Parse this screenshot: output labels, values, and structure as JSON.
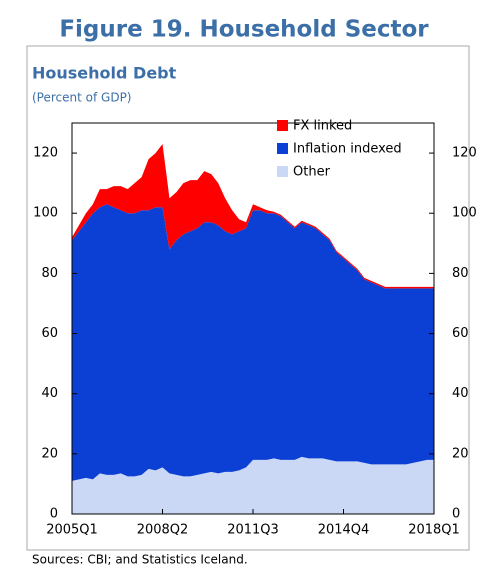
{
  "chart_data": {
    "type": "stacked_area",
    "title": "Figure 19. Household Sector",
    "subtitle": "Household Debt",
    "y_axis_label": "(Percent of GDP)",
    "source": "Sources: CBI; and Statistics Iceland.",
    "categories": [
      "2005Q1",
      null,
      null,
      null,
      null,
      null,
      null,
      null,
      null,
      null,
      null,
      null,
      null,
      "2008Q2",
      null,
      null,
      null,
      null,
      null,
      null,
      null,
      null,
      null,
      null,
      null,
      null,
      "2011Q3",
      null,
      null,
      null,
      null,
      null,
      null,
      null,
      null,
      null,
      null,
      null,
      null,
      "2014Q4",
      null,
      null,
      null,
      null,
      null,
      null,
      null,
      null,
      null,
      null,
      null,
      null,
      "2018Q1"
    ],
    "series": [
      {
        "name": "Other",
        "color": "#cad8f6",
        "values": [
          11,
          11.5,
          12,
          11.5,
          13.5,
          13,
          13,
          13.5,
          12.5,
          12.5,
          13,
          15,
          14.5,
          15.5,
          13.5,
          13,
          12.5,
          12.5,
          13,
          13.5,
          14,
          13.5,
          14,
          14,
          14.5,
          15.5,
          18,
          18,
          18,
          18.5,
          18,
          18,
          18,
          19,
          18.5,
          18.5,
          18.5,
          18,
          17.5,
          17.5,
          17.5,
          17.5,
          17,
          16.5,
          16.5,
          16.5,
          16.5,
          16.5,
          16.5,
          17,
          17.5,
          18,
          18
        ]
      },
      {
        "name": "Inflation indexed",
        "color": "#0c3fd4",
        "values": [
          80,
          82.5,
          85,
          88.5,
          88.5,
          90,
          89,
          87.5,
          87.5,
          87.5,
          88,
          86,
          87.5,
          86.5,
          74.5,
          78,
          80.5,
          81.5,
          82,
          83.5,
          83,
          82.5,
          80,
          79,
          79.5,
          79.5,
          83,
          83,
          82,
          81.5,
          81,
          79,
          77,
          78,
          77.5,
          76.5,
          74.5,
          73,
          69.5,
          67.5,
          65.5,
          63.5,
          61,
          60.5,
          59.5,
          58.5,
          58.5,
          58.5,
          58.5,
          58,
          57.5,
          57,
          57
        ]
      },
      {
        "name": "FX linked",
        "color": "#ff0000",
        "values": [
          1,
          2,
          3,
          3,
          6,
          5,
          7,
          8,
          8,
          10,
          11,
          17,
          18,
          21,
          17,
          16,
          17,
          17,
          16,
          17,
          16,
          14,
          11,
          8,
          4,
          2,
          2,
          1,
          1,
          0.5,
          0.5,
          0.5,
          0.5,
          0.5,
          0.5,
          0.5,
          0.5,
          0.5,
          0.5,
          0.5,
          0.5,
          0.5,
          0.5,
          0.5,
          0.5,
          0.5,
          0.5,
          0.5,
          0.5,
          0.5,
          0.5,
          0.5,
          0.5
        ]
      }
    ],
    "ylim": [
      0,
      130
    ],
    "yticks": [
      0,
      20,
      40,
      60,
      80,
      100,
      120
    ],
    "y2lim": [
      0,
      130
    ],
    "y2ticks": [
      0,
      20,
      40,
      60,
      80,
      100,
      120
    ],
    "legend": "top-right"
  }
}
